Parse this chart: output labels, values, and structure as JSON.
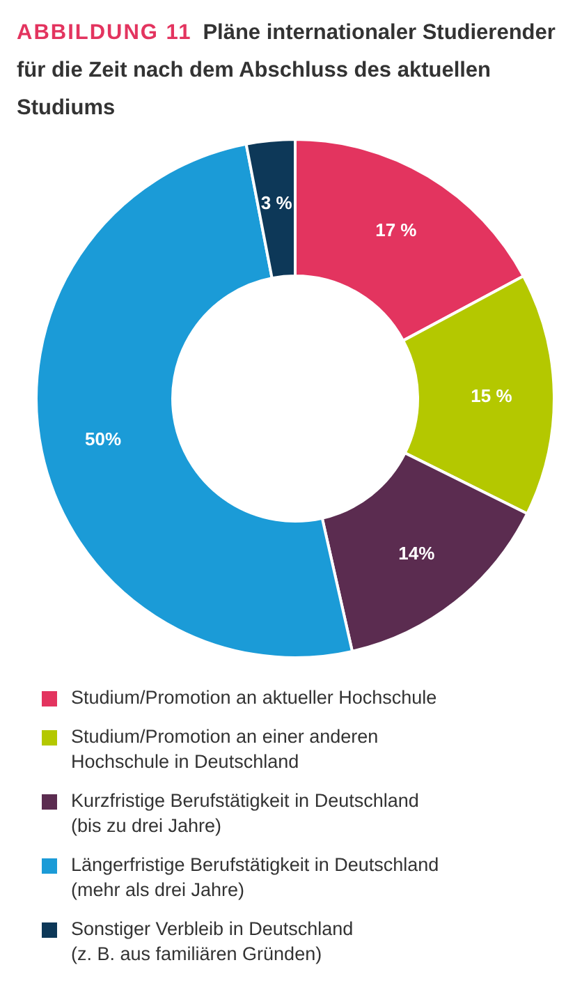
{
  "chart_data": {
    "type": "donut",
    "subtitle": "ABBILDUNG 11",
    "title": "Pläne internationaler Studierender für die Zeit nach dem Abschluss des aktuellen Studiums",
    "categories": [
      "Studium/Promotion an aktueller Hochschule",
      "Studium/Promotion an einer anderen\nHochschule in Deutschland",
      "Kurzfristige Berufstätigkeit in Deutschland\n(bis zu drei Jahre)",
      "Längerfristige Berufstätigkeit in Deutschland\n(mehr als drei Jahre)",
      "Sonstiger Verbleib in Deutschland\n(z. B. aus familiären Gründen)"
    ],
    "values": [
      17,
      15,
      14,
      50,
      3
    ],
    "value_labels": [
      "17 %",
      "15 %",
      "14%",
      "50%",
      "3 %"
    ],
    "colors": [
      "#e3345f",
      "#b4c800",
      "#5b2c50",
      "#1b9bd7",
      "#0d3858"
    ],
    "legend": "bottom"
  }
}
